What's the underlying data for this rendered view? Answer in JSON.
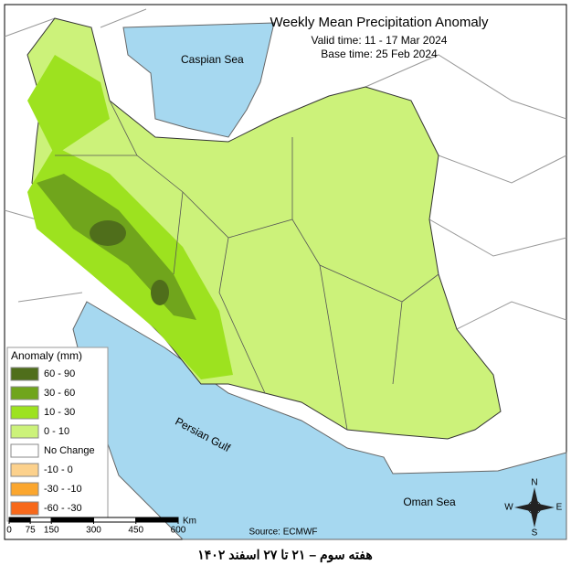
{
  "header": {
    "title": "Weekly Mean Precipitation Anomaly",
    "valid_time": "Valid time:  11 - 17 Mar 2024",
    "base_time": "Base time: 25 Feb 2024"
  },
  "labels": {
    "caspian": "Caspian Sea",
    "gulf": "Persian Gulf",
    "oman": "Oman Sea"
  },
  "legend": {
    "title": "Anomaly (mm)",
    "items": [
      {
        "label": "60 - 90",
        "color": "#4f6e1b"
      },
      {
        "label": "30 - 60",
        "color": "#70a51c"
      },
      {
        "label": "10 - 30",
        "color": "#9de21f"
      },
      {
        "label": "0 - 10",
        "color": "#ccf27a"
      },
      {
        "label": "No Change",
        "color": "#ffffff"
      },
      {
        "label": "-10 - 0",
        "color": "#fcd18c"
      },
      {
        "label": "-30 - -10",
        "color": "#fba62e"
      },
      {
        "label": "-60 - -30",
        "color": "#f7681a"
      }
    ]
  },
  "scale_bar": {
    "unit": "Km",
    "ticks": [
      0,
      75,
      150,
      300,
      450,
      600
    ]
  },
  "compass": {
    "n": "N",
    "e": "E",
    "s": "S",
    "w": "W"
  },
  "source": "Source: ECMWF",
  "footer": "هفته سوم – ۲۱ تا ۲۷ اسفند ۱۴۰۲"
}
